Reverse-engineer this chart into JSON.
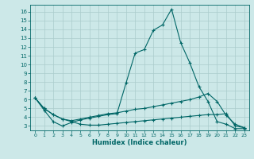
{
  "title": "",
  "xlabel": "Humidex (Indice chaleur)",
  "background_color": "#cce8e8",
  "grid_color": "#aacccc",
  "line_color": "#006666",
  "xlim": [
    -0.5,
    23.5
  ],
  "ylim": [
    2.5,
    16.8
  ],
  "xticks": [
    0,
    1,
    2,
    3,
    4,
    5,
    6,
    7,
    8,
    9,
    10,
    11,
    12,
    13,
    14,
    15,
    16,
    17,
    18,
    19,
    20,
    21,
    22,
    23
  ],
  "yticks": [
    3,
    4,
    5,
    6,
    7,
    8,
    9,
    10,
    11,
    12,
    13,
    14,
    15,
    16
  ],
  "line1_x": [
    0,
    1,
    2,
    3,
    4,
    5,
    6,
    7,
    8,
    9,
    10,
    11,
    12,
    13,
    14,
    15,
    16,
    17,
    18,
    19,
    20,
    21,
    22,
    23
  ],
  "line1_y": [
    6.2,
    4.8,
    3.5,
    3.0,
    3.4,
    3.7,
    3.9,
    4.1,
    4.3,
    4.4,
    7.9,
    11.3,
    11.7,
    13.9,
    14.5,
    16.3,
    12.5,
    10.2,
    7.5,
    5.8,
    3.5,
    3.2,
    2.7,
    2.7
  ],
  "line2_x": [
    0,
    1,
    2,
    3,
    4,
    5,
    6,
    7,
    8,
    9,
    10,
    11,
    12,
    13,
    14,
    15,
    16,
    17,
    18,
    19,
    20,
    21,
    22,
    23
  ],
  "line2_y": [
    6.2,
    5.0,
    4.3,
    3.8,
    3.6,
    3.8,
    4.0,
    4.2,
    4.4,
    4.5,
    4.7,
    4.9,
    5.0,
    5.2,
    5.4,
    5.6,
    5.8,
    6.0,
    6.3,
    6.7,
    5.8,
    4.2,
    3.2,
    2.8
  ],
  "line3_x": [
    0,
    1,
    2,
    3,
    4,
    5,
    6,
    7,
    8,
    9,
    10,
    11,
    12,
    13,
    14,
    15,
    16,
    17,
    18,
    19,
    20,
    21,
    22,
    23
  ],
  "line3_y": [
    6.2,
    5.0,
    4.3,
    3.8,
    3.5,
    3.2,
    3.1,
    3.1,
    3.2,
    3.3,
    3.4,
    3.5,
    3.6,
    3.7,
    3.8,
    3.9,
    4.0,
    4.1,
    4.2,
    4.3,
    4.3,
    4.4,
    3.0,
    2.8
  ]
}
